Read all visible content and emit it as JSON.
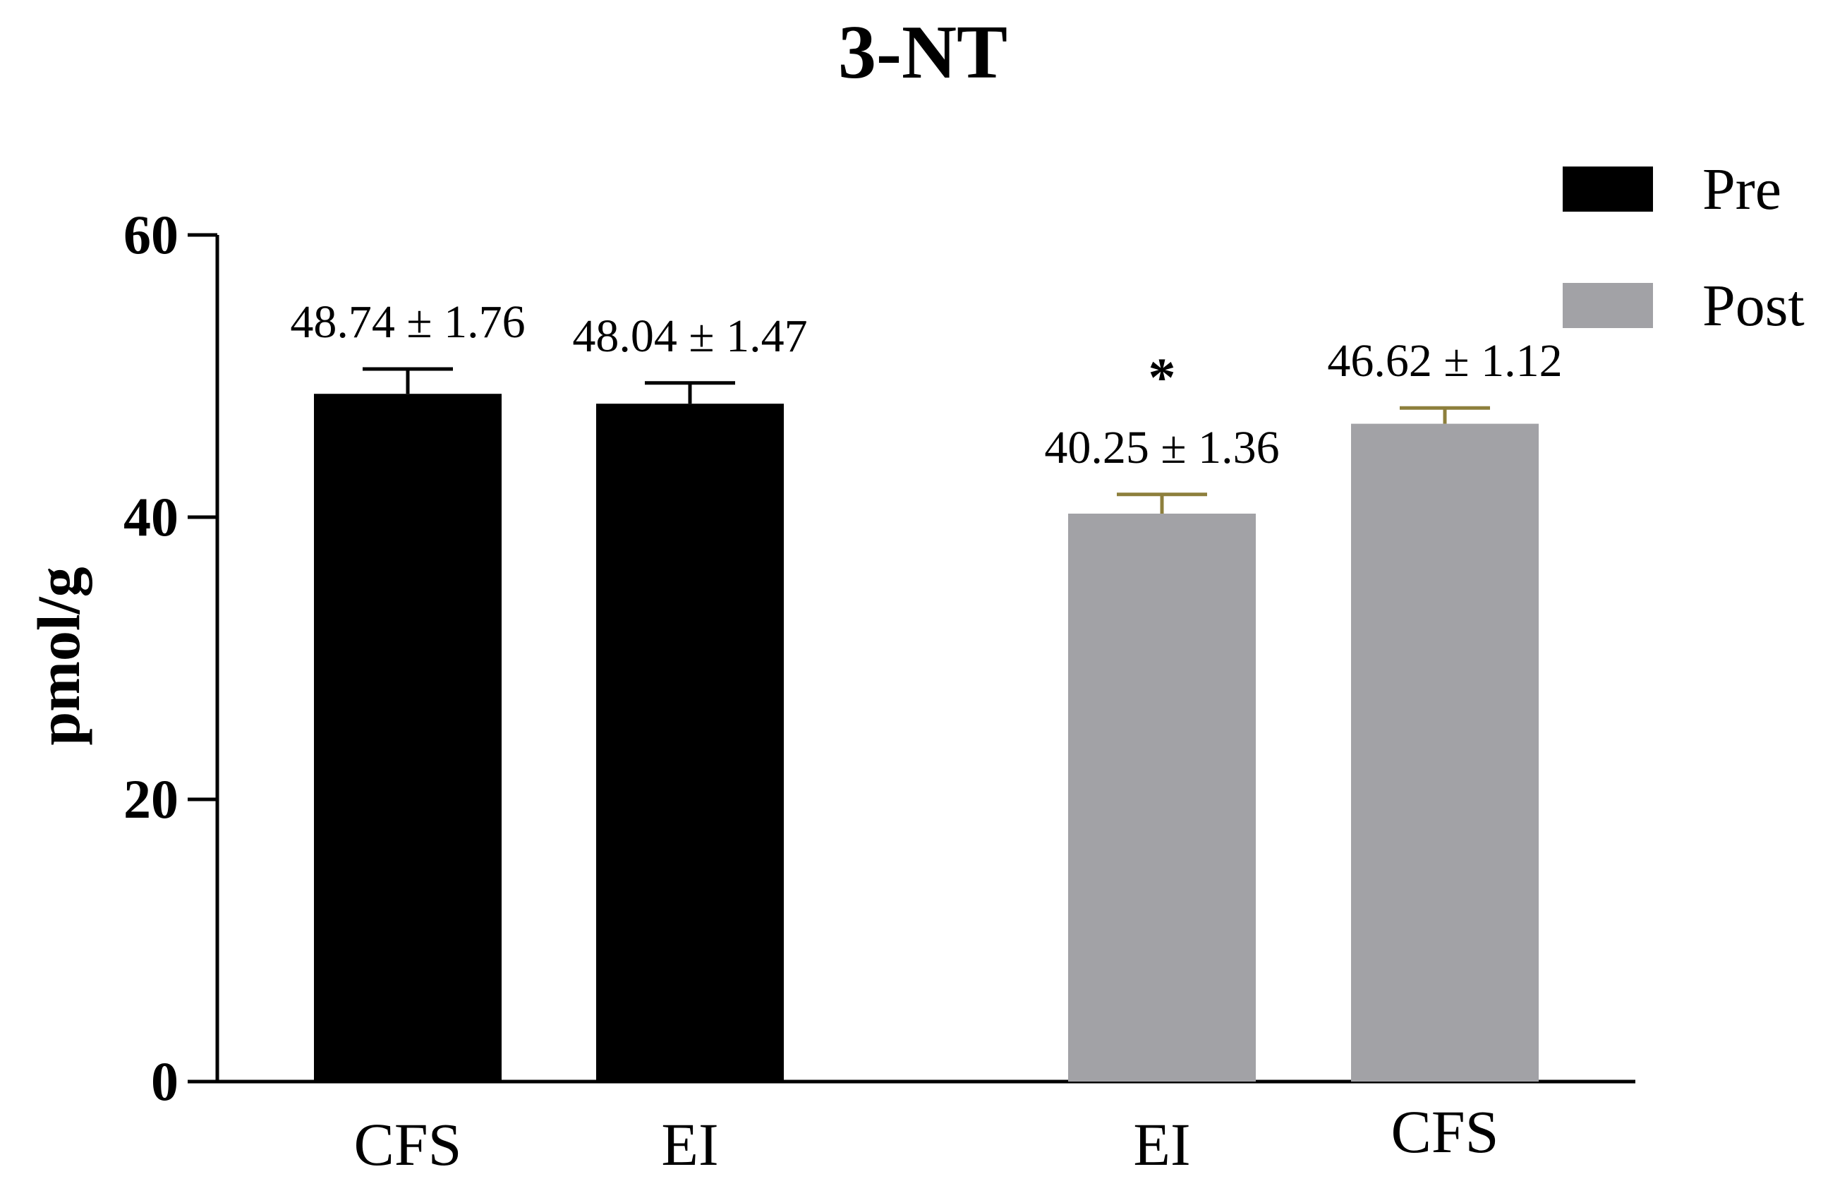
{
  "chart_data": {
    "type": "bar",
    "title": "3-NT",
    "xlabel": "",
    "ylabel": "pmol/g",
    "ylim": [
      0,
      60
    ],
    "yticks": [
      0,
      20,
      40,
      60
    ],
    "legend_position": "top-right",
    "series_colors": {
      "Pre": "#000000",
      "Post": "#a2a2a6"
    },
    "errorbar_colors": {
      "Pre": "#000000",
      "Post": "#8d7f3c"
    },
    "series": [
      {
        "name": "Pre",
        "color": "#000000"
      },
      {
        "name": "Post",
        "color": "#a2a2a6"
      }
    ],
    "bars": [
      {
        "category": "CFS",
        "series": "Pre",
        "value": 48.74,
        "error": 1.76,
        "label": "48.74 ± 1.76",
        "significance": ""
      },
      {
        "category": "EI",
        "series": "Pre",
        "value": 48.04,
        "error": 1.47,
        "label": "48.04 ± 1.47",
        "significance": ""
      },
      {
        "category": "EI",
        "series": "Post",
        "value": 40.25,
        "error": 1.36,
        "label": "40.25 ± 1.36",
        "significance": "*"
      },
      {
        "category": "CFS",
        "series": "Post",
        "value": 46.62,
        "error": 1.12,
        "label": "46.62 ± 1.12",
        "significance": ""
      }
    ]
  }
}
